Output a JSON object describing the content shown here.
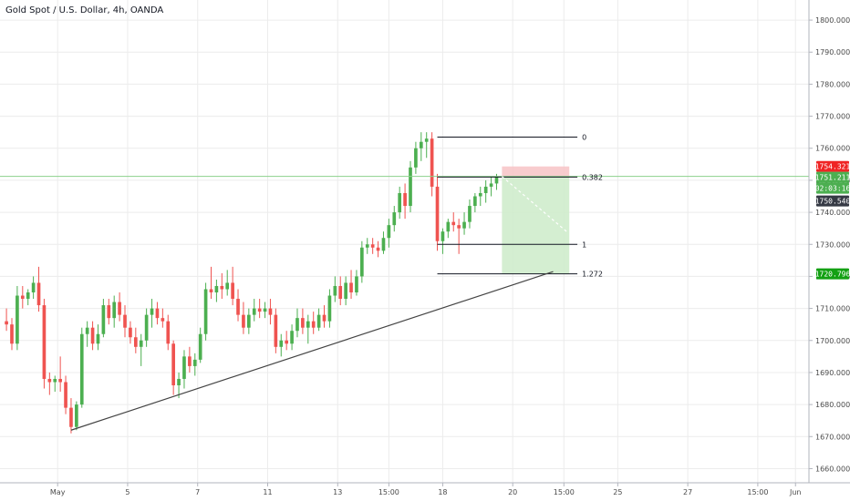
{
  "header": {
    "title": "Gold Spot / U.S. Dollar, 4h, OANDA"
  },
  "colors": {
    "up": "#4caf50",
    "down": "#ef5350",
    "grid": "#ececec",
    "axis": "#b2b5be",
    "current_line": "#8bd18b",
    "fib_line": "#131722",
    "trend_line": "#444444",
    "stop_zone": "#f7c7c9",
    "target_zone": "#cfeccc",
    "tag_stop": "#ef2525",
    "tag_price": "#4caf50",
    "tag_timer": "#4caf50",
    "tag_last": "#363a45",
    "tag_target": "#13a013"
  },
  "chart_data": {
    "type": "candlestick",
    "title": "Gold Spot / U.S. Dollar, 4h, OANDA",
    "ylim": [
      1657,
      1804
    ],
    "y_ticks": [
      1660,
      1670,
      1680,
      1690,
      1700,
      1710,
      1720,
      1730,
      1740,
      1750,
      1760,
      1770,
      1780,
      1790,
      1800
    ],
    "y_tick_labels": [
      "1660.000",
      "1670.000",
      "1680.000",
      "1690.000",
      "1700.000",
      "1710.000",
      "1720.000",
      "1730.000",
      "1740.000",
      "1750.000",
      "1760.000",
      "1770.000",
      "1780.000",
      "1790.000",
      "1800.000"
    ],
    "x_range": [
      -1.2,
      149
    ],
    "x_ticks": [
      {
        "i": 9.5,
        "label": "May"
      },
      {
        "i": 22.5,
        "label": "5"
      },
      {
        "i": 35.5,
        "label": "7"
      },
      {
        "i": 48.5,
        "label": "11"
      },
      {
        "i": 61.5,
        "label": "13"
      },
      {
        "i": 71,
        "label": "15:00"
      },
      {
        "i": 81,
        "label": "18"
      },
      {
        "i": 94,
        "label": "20"
      },
      {
        "i": 103.5,
        "label": "15:00"
      },
      {
        "i": 113.5,
        "label": "25"
      },
      {
        "i": 126.5,
        "label": "27"
      },
      {
        "i": 139.5,
        "label": "15:00"
      },
      {
        "i": 146.5,
        "label": "Jun"
      }
    ],
    "candles": [
      [
        1706,
        1710,
        1703,
        1705
      ],
      [
        1705,
        1707,
        1697,
        1699
      ],
      [
        1699,
        1717,
        1697,
        1714
      ],
      [
        1714,
        1717,
        1710,
        1713
      ],
      [
        1713,
        1716,
        1711,
        1715
      ],
      [
        1715,
        1720,
        1713,
        1718
      ],
      [
        1718,
        1723,
        1709,
        1711
      ],
      [
        1711,
        1713,
        1685,
        1688
      ],
      [
        1688,
        1690,
        1683,
        1687
      ],
      [
        1687,
        1689,
        1684,
        1688
      ],
      [
        1688,
        1695,
        1684,
        1687
      ],
      [
        1687,
        1689,
        1677,
        1679
      ],
      [
        1679,
        1682,
        1671,
        1673
      ],
      [
        1673,
        1681,
        1672,
        1680
      ],
      [
        1680,
        1704,
        1679,
        1702
      ],
      [
        1702,
        1706,
        1698,
        1704
      ],
      [
        1704,
        1706,
        1697,
        1699
      ],
      [
        1699,
        1705,
        1697,
        1702
      ],
      [
        1702,
        1713,
        1701,
        1711
      ],
      [
        1711,
        1713,
        1705,
        1707
      ],
      [
        1707,
        1714,
        1704,
        1712
      ],
      [
        1712,
        1715,
        1706,
        1708
      ],
      [
        1708,
        1711,
        1701,
        1704
      ],
      [
        1704,
        1706,
        1699,
        1701
      ],
      [
        1701,
        1704,
        1696,
        1698
      ],
      [
        1698,
        1702,
        1692,
        1700
      ],
      [
        1700,
        1710,
        1698,
        1708
      ],
      [
        1708,
        1713,
        1704,
        1710
      ],
      [
        1710,
        1712,
        1705,
        1707
      ],
      [
        1707,
        1710,
        1704,
        1706
      ],
      [
        1706,
        1708,
        1697,
        1699
      ],
      [
        1699,
        1700,
        1683,
        1686
      ],
      [
        1686,
        1690,
        1682,
        1688
      ],
      [
        1688,
        1697,
        1685,
        1695
      ],
      [
        1695,
        1698,
        1690,
        1692
      ],
      [
        1692,
        1696,
        1689,
        1694
      ],
      [
        1694,
        1704,
        1693,
        1702
      ],
      [
        1702,
        1718,
        1700,
        1716
      ],
      [
        1716,
        1723,
        1713,
        1715
      ],
      [
        1715,
        1719,
        1712,
        1717
      ],
      [
        1717,
        1721,
        1713,
        1716
      ],
      [
        1716,
        1722,
        1714,
        1718
      ],
      [
        1718,
        1723,
        1711,
        1713
      ],
      [
        1713,
        1716,
        1706,
        1708
      ],
      [
        1708,
        1712,
        1702,
        1704
      ],
      [
        1704,
        1710,
        1702,
        1708
      ],
      [
        1708,
        1713,
        1706,
        1710
      ],
      [
        1710,
        1713,
        1707,
        1709
      ],
      [
        1709,
        1712,
        1707,
        1710
      ],
      [
        1710,
        1713,
        1705,
        1708
      ],
      [
        1708,
        1710,
        1696,
        1698
      ],
      [
        1698,
        1702,
        1695,
        1700
      ],
      [
        1700,
        1703,
        1697,
        1699
      ],
      [
        1699,
        1705,
        1697,
        1703
      ],
      [
        1703,
        1710,
        1701,
        1707
      ],
      [
        1707,
        1710,
        1702,
        1704
      ],
      [
        1704,
        1708,
        1699,
        1706
      ],
      [
        1706,
        1709,
        1702,
        1704
      ],
      [
        1704,
        1710,
        1703,
        1708
      ],
      [
        1708,
        1711,
        1704,
        1706
      ],
      [
        1706,
        1716,
        1704,
        1714
      ],
      [
        1714,
        1720,
        1712,
        1717
      ],
      [
        1717,
        1720,
        1711,
        1713
      ],
      [
        1713,
        1720,
        1711,
        1718
      ],
      [
        1718,
        1722,
        1713,
        1715
      ],
      [
        1715,
        1722,
        1714,
        1720
      ],
      [
        1720,
        1731,
        1718,
        1729
      ],
      [
        1729,
        1732,
        1727,
        1730
      ],
      [
        1730,
        1732,
        1727,
        1729
      ],
      [
        1729,
        1731,
        1726,
        1728
      ],
      [
        1728,
        1734,
        1727,
        1732
      ],
      [
        1732,
        1738,
        1729,
        1736
      ],
      [
        1736,
        1742,
        1734,
        1740
      ],
      [
        1740,
        1748,
        1738,
        1746
      ],
      [
        1746,
        1749,
        1738,
        1742
      ],
      [
        1742,
        1756,
        1740,
        1754
      ],
      [
        1754,
        1762,
        1752,
        1760
      ],
      [
        1760,
        1765,
        1756,
        1762
      ],
      [
        1762,
        1765,
        1757,
        1763
      ],
      [
        1763,
        1765,
        1745,
        1748
      ],
      [
        1748,
        1752,
        1728,
        1731
      ],
      [
        1731,
        1735,
        1727,
        1734
      ],
      [
        1734,
        1738,
        1732,
        1737
      ],
      [
        1737,
        1740,
        1734,
        1736
      ],
      [
        1736,
        1738,
        1727,
        1735
      ],
      [
        1735,
        1740,
        1733,
        1737
      ],
      [
        1737,
        1744,
        1735,
        1742
      ],
      [
        1742,
        1746,
        1740,
        1745
      ],
      [
        1745,
        1748,
        1742,
        1746
      ],
      [
        1746,
        1750,
        1743,
        1748
      ],
      [
        1748,
        1751,
        1745,
        1749
      ],
      [
        1749,
        1752,
        1747,
        1751
      ]
    ],
    "current_price": 1751.211,
    "last_price": 1750.54,
    "countdown": "02:03:16",
    "fibonacci": {
      "levels": [
        {
          "ratio": "0",
          "price": 1763.5
        },
        {
          "ratio": "0.382",
          "price": 1751.0
        },
        {
          "ratio": "1",
          "price": 1730.0
        },
        {
          "ratio": "1.272",
          "price": 1720.8
        }
      ],
      "i_start": 80,
      "i_end": 106
    },
    "position": {
      "entry": 1751.211,
      "stop": 1754.321,
      "target": 1720.796,
      "i_start": 92,
      "i_end": 104.5
    },
    "trend_line": {
      "i1": 12,
      "p1": 1672,
      "i2": 101.5,
      "p2": 1721.5
    },
    "price_tags": {
      "stop": "1754.321",
      "current": "1751.211",
      "timer": "02:03:16",
      "last": "1750.540",
      "target": "1720.796"
    }
  }
}
